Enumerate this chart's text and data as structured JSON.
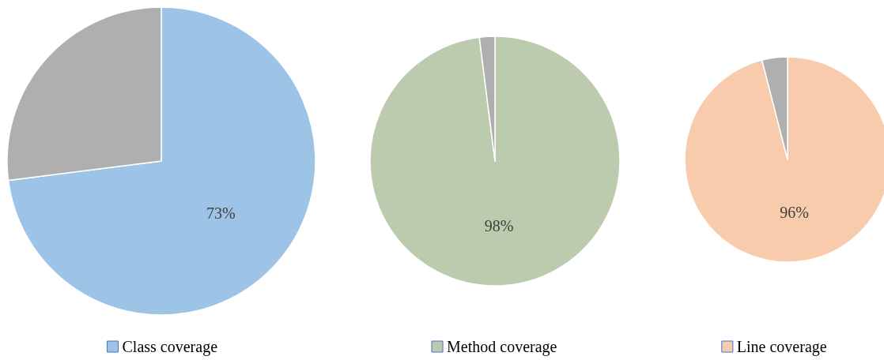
{
  "chart_data": [
    {
      "type": "pie",
      "categories": [
        "Class coverage",
        null
      ],
      "values": [
        73,
        27
      ],
      "colors": [
        "#9dc3e6",
        "#b0afb0"
      ],
      "value_labels": [
        "73%",
        null
      ],
      "legend": "bottom"
    },
    {
      "type": "pie",
      "categories": [
        "Method coverage",
        null
      ],
      "values": [
        98,
        2
      ],
      "colors": [
        "#bccbad",
        "#b0afb0"
      ],
      "value_labels": [
        "98%",
        null
      ],
      "legend": "bottom"
    },
    {
      "type": "pie",
      "categories": [
        "Line coverage",
        null
      ],
      "values": [
        96,
        4
      ],
      "colors": [
        "#f8cbad",
        "#b0afb0"
      ],
      "value_labels": [
        "96%",
        null
      ],
      "legend": "bottom"
    }
  ]
}
